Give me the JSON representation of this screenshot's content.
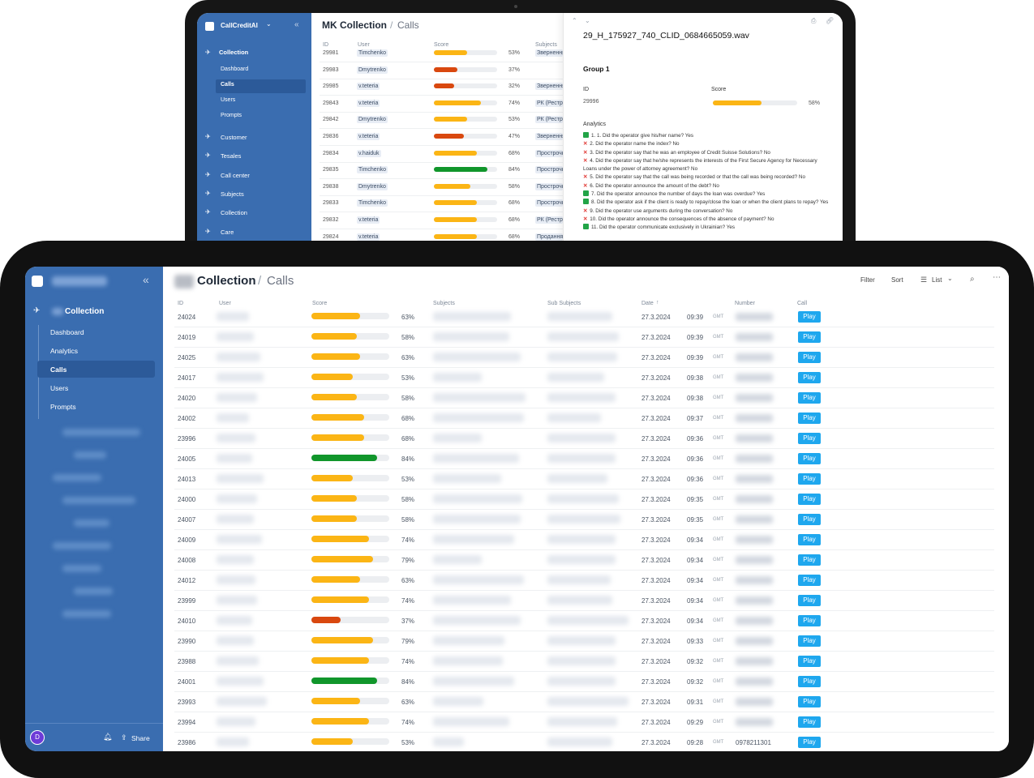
{
  "back": {
    "brand": "CallCreditAI",
    "brand_caret": "⌄",
    "collapse": "«",
    "breadcrumb_main": "MK Collection",
    "breadcrumb_sep": "/",
    "breadcrumb_sub": "Calls",
    "nav_section": "Collection",
    "nav_sub": [
      "Dashboard",
      "Calls",
      "Users",
      "Prompts"
    ],
    "nav_groups": [
      "Customer",
      "Tesales",
      "Call center",
      "Subjects",
      "Collection",
      "Care"
    ],
    "columns": [
      "ID",
      "User",
      "Score",
      "Subjects"
    ],
    "rows": [
      {
        "id": "29981",
        "user": "Timchenko",
        "score": 53,
        "pct": "53%",
        "color": "#fbb515",
        "subject": "Звернення"
      },
      {
        "id": "29983",
        "user": "Dmytrenko",
        "score": 37,
        "pct": "37%",
        "color": "#d9480f",
        "subject": ""
      },
      {
        "id": "29985",
        "user": "v.teteria",
        "score": 32,
        "pct": "32%",
        "color": "#d9480f",
        "subject": "Звернення"
      },
      {
        "id": "29843",
        "user": "v.teteria",
        "score": 74,
        "pct": "74%",
        "color": "#fbb515",
        "subject": "РК (Реструкт"
      },
      {
        "id": "29842",
        "user": "Dmytrenko",
        "score": 53,
        "pct": "53%",
        "color": "#fbb515",
        "subject": "РК (Реструкт"
      },
      {
        "id": "29836",
        "user": "v.teteria",
        "score": 47,
        "pct": "47%",
        "color": "#d9480f",
        "subject": "Звернення"
      },
      {
        "id": "29834",
        "user": "v.haiduk",
        "score": 68,
        "pct": "68%",
        "color": "#fbb515",
        "subject": "Прострочка"
      },
      {
        "id": "29835",
        "user": "Timchenko",
        "score": 84,
        "pct": "84%",
        "color": "#11962b",
        "subject": "Прострочка"
      },
      {
        "id": "29838",
        "user": "Dmytrenko",
        "score": 58,
        "pct": "58%",
        "color": "#fbb515",
        "subject": "Прострочка"
      },
      {
        "id": "29833",
        "user": "Timchenko",
        "score": 68,
        "pct": "68%",
        "color": "#fbb515",
        "subject": "Прострочка"
      },
      {
        "id": "29832",
        "user": "v.teteria",
        "score": 68,
        "pct": "68%",
        "color": "#fbb515",
        "subject": "РК (Реструкт"
      },
      {
        "id": "29824",
        "user": "v.teteria",
        "score": 68,
        "pct": "68%",
        "color": "#fbb515",
        "subject": "Продання"
      }
    ],
    "panel": {
      "filename": "29_H_175927_740_CLID_0684665059.wav",
      "group": "Group 1",
      "id_label": "ID",
      "id_value": "29996",
      "score_label": "Score",
      "score": 58,
      "score_pct": "58%",
      "analytics_label": "Analytics",
      "items": [
        {
          "ok": true,
          "text": "1. 1. Did the operator give his/her name? Yes"
        },
        {
          "ok": false,
          "text": "2. Did the operator name the index? No"
        },
        {
          "ok": false,
          "text": "3. Did the operator say that he was an employee of Credit Suisse Solutions? No"
        },
        {
          "ok": false,
          "text": "4. Did the operator say that he/she represents the interests of the First Secure Agency for Necessary Loans under the power of attorney agreement? No"
        },
        {
          "ok": false,
          "text": "5. Did the operator say that the call was being recorded or that the call was being recorded? No"
        },
        {
          "ok": false,
          "text": "6. Did the operator announce the amount of the debt? No"
        },
        {
          "ok": true,
          "text": "7. Did the operator announce the number of days the loan was overdue? Yes"
        },
        {
          "ok": true,
          "text": "8. Did the operator ask if the client is ready to repay/close the loan or when the client plans to repay? Yes"
        },
        {
          "ok": false,
          "text": "9. Did the operator use arguments during the conversation? No"
        },
        {
          "ok": false,
          "text": "10. Did the operator announce the consequences of the absence of payment? No"
        },
        {
          "ok": true,
          "text": "11. Did the operator communicate exclusively in Ukrainian? Yes"
        }
      ]
    }
  },
  "front": {
    "collapse": "«",
    "nav_section": "Collection",
    "nav_sub": [
      "Dashboard",
      "Analytics",
      "Calls",
      "Users",
      "Prompts"
    ],
    "avatar": "D",
    "share": "Share",
    "breadcrumb_main": "Collection",
    "breadcrumb_sep": "/",
    "breadcrumb_sub": "Calls",
    "toolbar": {
      "filter": "Filter",
      "sort": "Sort",
      "list": "List"
    },
    "columns": {
      "id": "ID",
      "user": "User",
      "score": "Score",
      "subjects": "Subjects",
      "sub_subjects": "Sub Subjects",
      "date": "Date",
      "number": "Number",
      "call": "Call"
    },
    "play_label": "Play",
    "tz": "GMT",
    "rows": [
      {
        "id": "24024",
        "score": 63,
        "pct": "63%",
        "color": "#fbb515",
        "date": "27.3.2024",
        "time": "09:39",
        "number": ""
      },
      {
        "id": "24019",
        "score": 58,
        "pct": "58%",
        "color": "#fbb515",
        "date": "27.3.2024",
        "time": "09:39",
        "number": ""
      },
      {
        "id": "24025",
        "score": 63,
        "pct": "63%",
        "color": "#fbb515",
        "date": "27.3.2024",
        "time": "09:39",
        "number": ""
      },
      {
        "id": "24017",
        "score": 53,
        "pct": "53%",
        "color": "#fbb515",
        "date": "27.3.2024",
        "time": "09:38",
        "number": ""
      },
      {
        "id": "24020",
        "score": 58,
        "pct": "58%",
        "color": "#fbb515",
        "date": "27.3.2024",
        "time": "09:38",
        "number": ""
      },
      {
        "id": "24002",
        "score": 68,
        "pct": "68%",
        "color": "#fbb515",
        "date": "27.3.2024",
        "time": "09:37",
        "number": ""
      },
      {
        "id": "23996",
        "score": 68,
        "pct": "68%",
        "color": "#fbb515",
        "date": "27.3.2024",
        "time": "09:36",
        "number": ""
      },
      {
        "id": "24005",
        "score": 84,
        "pct": "84%",
        "color": "#11962b",
        "date": "27.3.2024",
        "time": "09:36",
        "number": ""
      },
      {
        "id": "24013",
        "score": 53,
        "pct": "53%",
        "color": "#fbb515",
        "date": "27.3.2024",
        "time": "09:36",
        "number": ""
      },
      {
        "id": "24000",
        "score": 58,
        "pct": "58%",
        "color": "#fbb515",
        "date": "27.3.2024",
        "time": "09:35",
        "number": ""
      },
      {
        "id": "24007",
        "score": 58,
        "pct": "58%",
        "color": "#fbb515",
        "date": "27.3.2024",
        "time": "09:35",
        "number": ""
      },
      {
        "id": "24009",
        "score": 74,
        "pct": "74%",
        "color": "#fbb515",
        "date": "27.3.2024",
        "time": "09:34",
        "number": ""
      },
      {
        "id": "24008",
        "score": 79,
        "pct": "79%",
        "color": "#fbb515",
        "date": "27.3.2024",
        "time": "09:34",
        "number": ""
      },
      {
        "id": "24012",
        "score": 63,
        "pct": "63%",
        "color": "#fbb515",
        "date": "27.3.2024",
        "time": "09:34",
        "number": ""
      },
      {
        "id": "23999",
        "score": 74,
        "pct": "74%",
        "color": "#fbb515",
        "date": "27.3.2024",
        "time": "09:34",
        "number": ""
      },
      {
        "id": "24010",
        "score": 37,
        "pct": "37%",
        "color": "#d9480f",
        "date": "27.3.2024",
        "time": "09:34",
        "number": ""
      },
      {
        "id": "23990",
        "score": 79,
        "pct": "79%",
        "color": "#fbb515",
        "date": "27.3.2024",
        "time": "09:33",
        "number": ""
      },
      {
        "id": "23988",
        "score": 74,
        "pct": "74%",
        "color": "#fbb515",
        "date": "27.3.2024",
        "time": "09:32",
        "number": ""
      },
      {
        "id": "24001",
        "score": 84,
        "pct": "84%",
        "color": "#11962b",
        "date": "27.3.2024",
        "time": "09:32",
        "number": ""
      },
      {
        "id": "23993",
        "score": 63,
        "pct": "63%",
        "color": "#fbb515",
        "date": "27.3.2024",
        "time": "09:31",
        "number": ""
      },
      {
        "id": "23994",
        "score": 74,
        "pct": "74%",
        "color": "#fbb515",
        "date": "27.3.2024",
        "time": "09:29",
        "number": ""
      },
      {
        "id": "23986",
        "score": 53,
        "pct": "53%",
        "color": "#fbb515",
        "date": "27.3.2024",
        "time": "09:28",
        "number": "0978211301"
      }
    ]
  }
}
